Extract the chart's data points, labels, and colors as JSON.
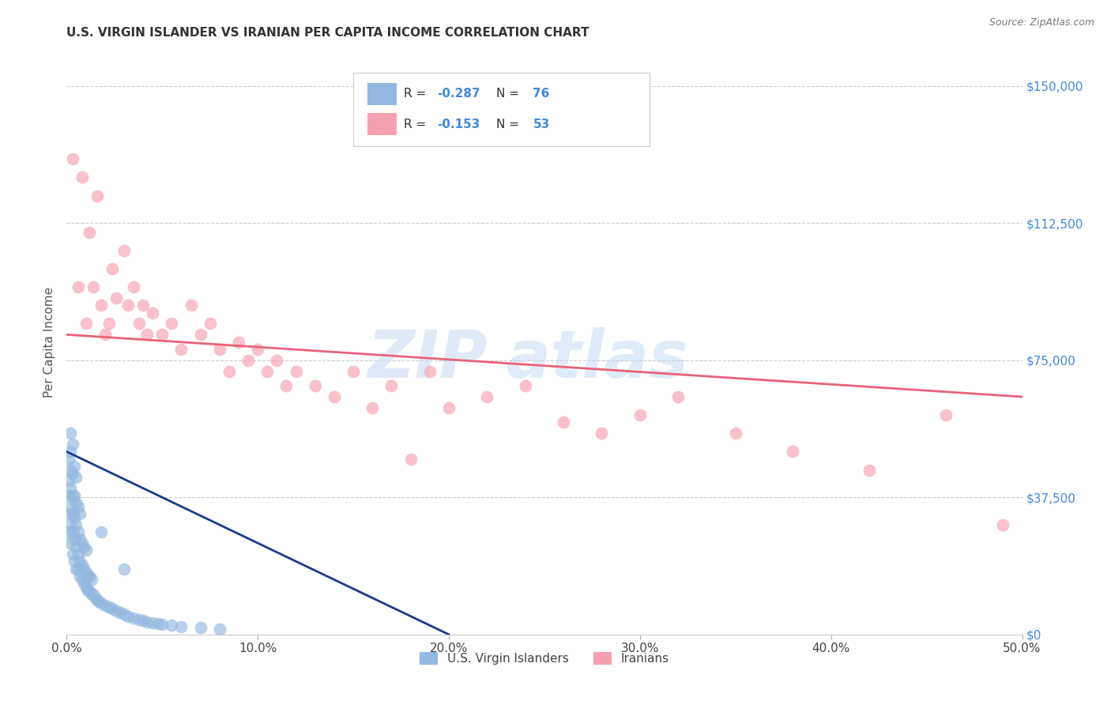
{
  "title": "U.S. VIRGIN ISLANDER VS IRANIAN PER CAPITA INCOME CORRELATION CHART",
  "source": "Source: ZipAtlas.com",
  "ylabel": "Per Capita Income",
  "xlim": [
    0.0,
    0.5
  ],
  "ylim": [
    0,
    160000
  ],
  "xticks": [
    0.0,
    0.1,
    0.2,
    0.3,
    0.4,
    0.5
  ],
  "xticklabels": [
    "0.0%",
    "10.0%",
    "20.0%",
    "30.0%",
    "40.0%",
    "50.0%"
  ],
  "yticks_right": [
    0,
    37500,
    75000,
    112500,
    150000
  ],
  "ytick_labels_right": [
    "$0",
    "$37,500",
    "$75,000",
    "$112,500",
    "$150,000"
  ],
  "grid_color": "#cccccc",
  "background_color": "#ffffff",
  "watermark_zip": "ZIP",
  "watermark_atlas": "atlas",
  "blue_R": -0.287,
  "blue_N": 76,
  "pink_R": -0.153,
  "pink_N": 53,
  "blue_color": "#92b8e0",
  "pink_color": "#f5a0b0",
  "blue_line_color": "#1a3a8c",
  "pink_line_color": "#e8637a",
  "blue_scatter_x": [
    0.001,
    0.001,
    0.001,
    0.001,
    0.001,
    0.002,
    0.002,
    0.002,
    0.002,
    0.002,
    0.002,
    0.002,
    0.003,
    0.003,
    0.003,
    0.003,
    0.003,
    0.003,
    0.004,
    0.004,
    0.004,
    0.004,
    0.004,
    0.005,
    0.005,
    0.005,
    0.005,
    0.005,
    0.006,
    0.006,
    0.006,
    0.006,
    0.007,
    0.007,
    0.007,
    0.007,
    0.008,
    0.008,
    0.008,
    0.009,
    0.009,
    0.009,
    0.01,
    0.01,
    0.01,
    0.011,
    0.011,
    0.012,
    0.012,
    0.013,
    0.013,
    0.014,
    0.015,
    0.016,
    0.017,
    0.018,
    0.02,
    0.022,
    0.024,
    0.026,
    0.028,
    0.03,
    0.032,
    0.035,
    0.038,
    0.04,
    0.042,
    0.045,
    0.048,
    0.05,
    0.055,
    0.06,
    0.07,
    0.08,
    0.018,
    0.03
  ],
  "blue_scatter_y": [
    28000,
    33000,
    38000,
    42000,
    48000,
    25000,
    30000,
    35000,
    40000,
    45000,
    50000,
    55000,
    22000,
    28000,
    33000,
    38000,
    44000,
    52000,
    20000,
    26000,
    32000,
    38000,
    46000,
    18000,
    24000,
    30000,
    36000,
    43000,
    18000,
    22000,
    28000,
    35000,
    16000,
    20000,
    26000,
    33000,
    15000,
    19000,
    25000,
    14000,
    18000,
    24000,
    13000,
    17000,
    23000,
    12000,
    16000,
    12000,
    16000,
    11000,
    15000,
    11000,
    10000,
    9500,
    9000,
    8500,
    8000,
    7500,
    7000,
    6500,
    6000,
    5500,
    5000,
    4500,
    4000,
    3800,
    3500,
    3200,
    3000,
    2800,
    2500,
    2200,
    1800,
    1500,
    28000,
    18000
  ],
  "pink_scatter_x": [
    0.003,
    0.006,
    0.008,
    0.01,
    0.012,
    0.014,
    0.016,
    0.018,
    0.02,
    0.022,
    0.024,
    0.026,
    0.03,
    0.032,
    0.035,
    0.038,
    0.04,
    0.042,
    0.045,
    0.05,
    0.055,
    0.06,
    0.065,
    0.07,
    0.075,
    0.08,
    0.085,
    0.09,
    0.095,
    0.1,
    0.105,
    0.11,
    0.115,
    0.12,
    0.13,
    0.14,
    0.15,
    0.16,
    0.17,
    0.18,
    0.19,
    0.2,
    0.22,
    0.24,
    0.26,
    0.28,
    0.3,
    0.32,
    0.35,
    0.38,
    0.42,
    0.46,
    0.49
  ],
  "pink_scatter_y": [
    130000,
    95000,
    125000,
    85000,
    110000,
    95000,
    120000,
    90000,
    82000,
    85000,
    100000,
    92000,
    105000,
    90000,
    95000,
    85000,
    90000,
    82000,
    88000,
    82000,
    85000,
    78000,
    90000,
    82000,
    85000,
    78000,
    72000,
    80000,
    75000,
    78000,
    72000,
    75000,
    68000,
    72000,
    68000,
    65000,
    72000,
    62000,
    68000,
    48000,
    72000,
    62000,
    65000,
    68000,
    58000,
    55000,
    60000,
    65000,
    55000,
    50000,
    45000,
    60000,
    30000
  ]
}
